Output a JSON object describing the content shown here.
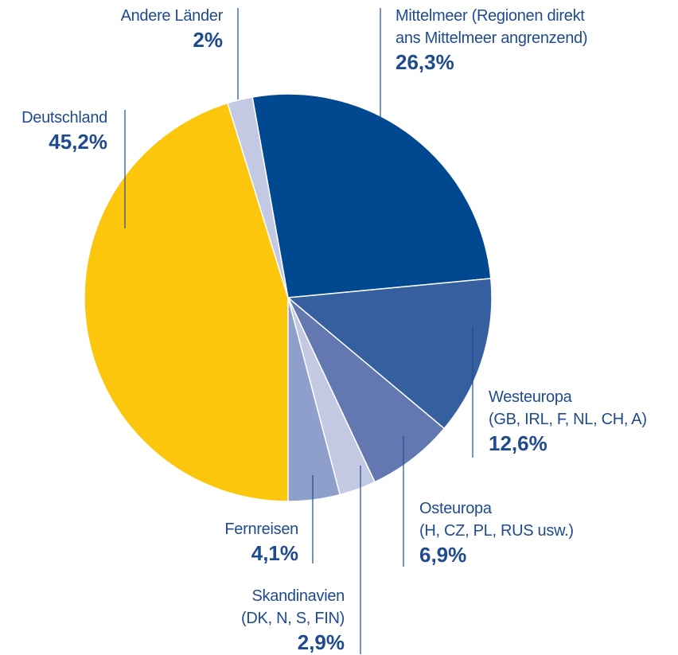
{
  "chart_data": {
    "type": "pie",
    "categories": [
      "Deutschland",
      "Andere Länder",
      "Mittelmeer (Regionen direkt\nans Mittelmeer angrenzend)",
      "Westeuropa\n(GB, IRL, F, NL, CH, A)",
      "Osteuropa\n(H, CZ, PL, RUS usw.)",
      "Skandinavien\n(DK, N, S, FIN)",
      "Fernreisen"
    ],
    "values": [
      45.2,
      2,
      26.3,
      12.6,
      6.9,
      2.9,
      4.1
    ],
    "value_labels": [
      "45,2%",
      "2%",
      "26,3%",
      "12,6%",
      "6,9%",
      "2,9%",
      "4,1%"
    ],
    "colors": [
      "#fcc60c",
      "#c3c8e3",
      "#004990",
      "#355f9f",
      "#6378b0",
      "#c3c8e3",
      "#8f9fcb"
    ]
  }
}
